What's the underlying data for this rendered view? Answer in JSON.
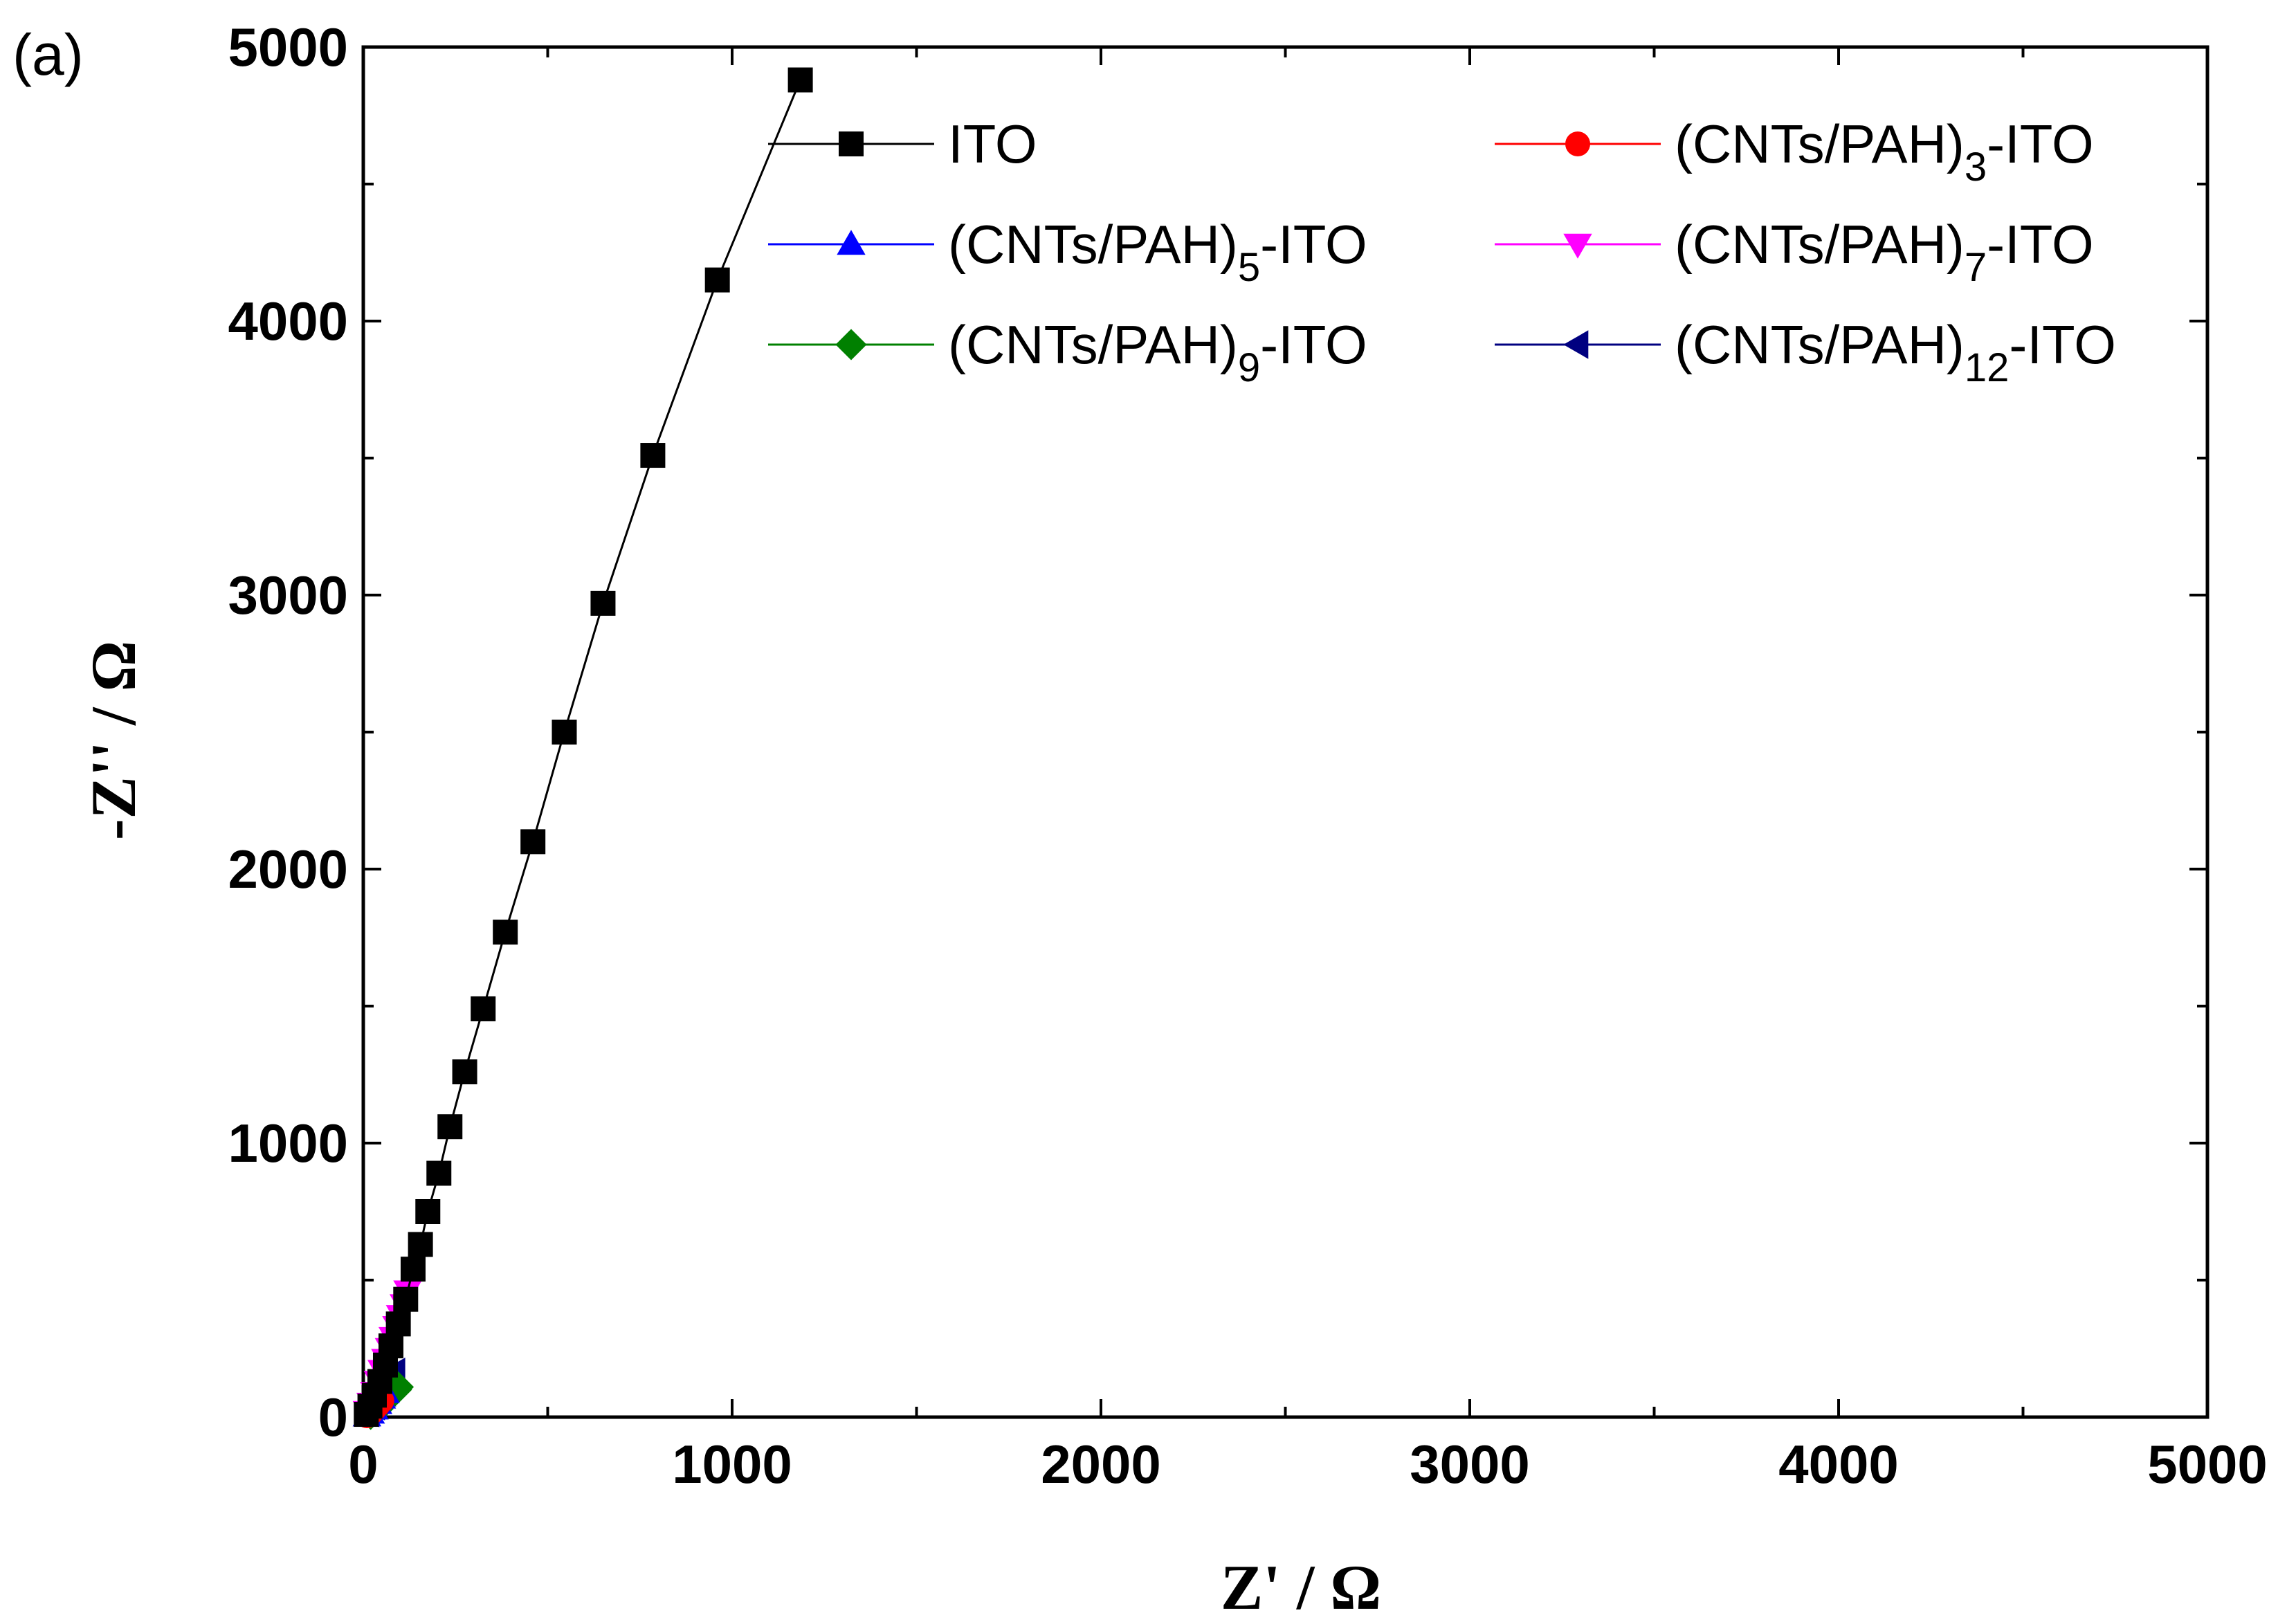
{
  "panel_label": "(a)",
  "chart_data": {
    "type": "scatter",
    "title": "",
    "xlabel": "Z' / Ω",
    "ylabel": "-Z'' / Ω",
    "xlim": [
      0,
      5000
    ],
    "ylim": [
      0,
      5000
    ],
    "x_ticks": [
      "0",
      "1000",
      "2000",
      "3000",
      "4000",
      "5000"
    ],
    "y_ticks": [
      "0",
      "1000",
      "2000",
      "3000",
      "4000",
      "5000"
    ],
    "legend_position": "top",
    "series": [
      {
        "name": "ITO",
        "label_parts": {
          "pre": "ITO",
          "sub": "",
          "post": ""
        },
        "color": "#000000",
        "marker": "square",
        "x": [
          1185,
          960,
          785,
          650,
          545,
          460,
          385,
          325,
          275,
          235,
          205,
          175,
          155,
          135,
          115,
          95,
          75,
          60,
          45,
          30,
          18,
          8
        ],
        "y": [
          4880,
          4150,
          3510,
          2970,
          2500,
          2100,
          1770,
          1490,
          1260,
          1060,
          890,
          750,
          630,
          540,
          430,
          340,
          260,
          190,
          130,
          80,
          40,
          10
        ]
      },
      {
        "name": "(CNTs/PAH)3-ITO",
        "label_parts": {
          "pre": "(CNTs/PAH)",
          "sub": "3",
          "post": "-ITO"
        },
        "color": "#ff0000",
        "marker": "circle",
        "x": [
          10,
          20,
          30,
          40,
          50
        ],
        "y": [
          5,
          15,
          30,
          45,
          60
        ]
      },
      {
        "name": "(CNTs/PAH)5-ITO",
        "label_parts": {
          "pre": "(CNTs/PAH)",
          "sub": "5",
          "post": "-ITO"
        },
        "color": "#0000ff",
        "marker": "triangle-up",
        "x": [
          10,
          20,
          30,
          40,
          50,
          60
        ],
        "y": [
          5,
          15,
          30,
          50,
          70,
          90
        ]
      },
      {
        "name": "(CNTs/PAH)7-ITO",
        "label_parts": {
          "pre": "(CNTs/PAH)",
          "sub": "7",
          "post": "-ITO"
        },
        "color": "#ff00ff",
        "marker": "triangle-down",
        "x": [
          10,
          20,
          30,
          40,
          50,
          60,
          70,
          80,
          90,
          100,
          110,
          120
        ],
        "y": [
          20,
          50,
          90,
          130,
          170,
          210,
          250,
          290,
          330,
          370,
          410,
          460
        ]
      },
      {
        "name": "(CNTs/PAH)9-ITO",
        "label_parts": {
          "pre": "(CNTs/PAH)",
          "sub": "9",
          "post": "-ITO"
        },
        "color": "#008000",
        "marker": "diamond",
        "x": [
          20,
          40,
          55,
          70,
          80,
          90,
          95
        ],
        "y": [
          10,
          30,
          55,
          75,
          90,
          100,
          110
        ]
      },
      {
        "name": "(CNTs/PAH)12-ITO",
        "label_parts": {
          "pre": "(CNTs/PAH)",
          "sub": "12",
          "post": "-ITO"
        },
        "color": "#000080",
        "marker": "triangle-left",
        "x": [
          15,
          30,
          45,
          60,
          70,
          80,
          85
        ],
        "y": [
          15,
          40,
          65,
          90,
          115,
          140,
          165
        ]
      }
    ]
  }
}
